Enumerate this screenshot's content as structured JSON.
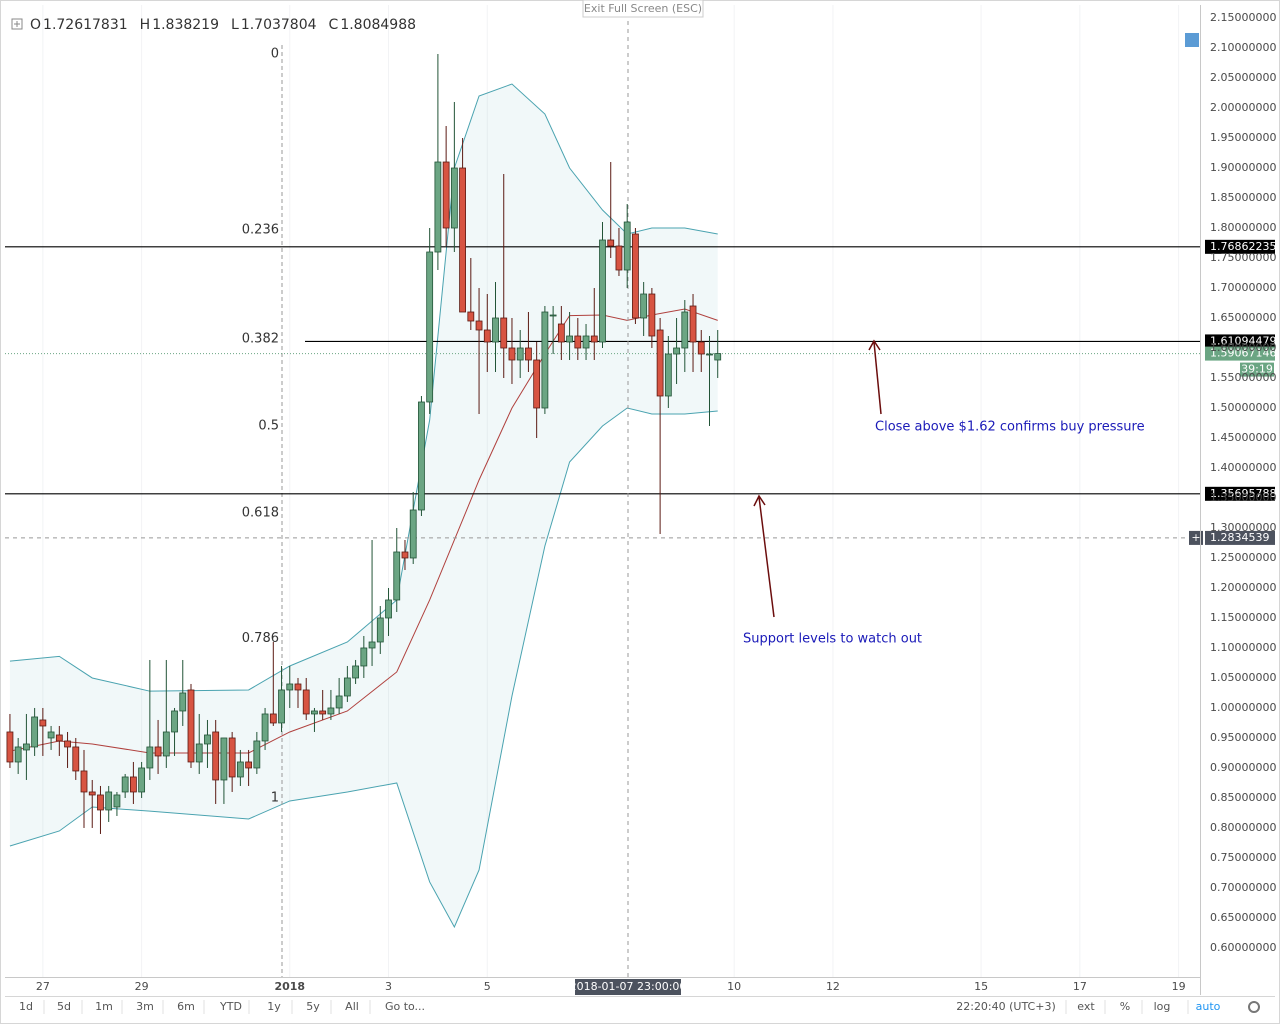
{
  "header": {
    "open_label": "O",
    "open": 1.72617831,
    "high_label": "H",
    "high": 1.838219,
    "low_label": "L",
    "low": 1.7037804,
    "close_label": "C",
    "close": 1.8084988
  },
  "exit_fullscreen": "Exit Full Screen (ESC)",
  "toolbar": {
    "ranges": [
      "1d",
      "5d",
      "1m",
      "3m",
      "6m",
      "YTD",
      "1y",
      "5y",
      "All"
    ],
    "goto": "Go to...",
    "clock": "22:20:40 (UTC+3)",
    "options": [
      "ext",
      "%",
      "log",
      "auto"
    ]
  },
  "chart_data": {
    "type": "candlestick",
    "up_color": "#6ba583",
    "down_color": "#d75442",
    "candles": {
      "open": [
        0.96,
        0.91,
        0.93,
        0.935,
        0.98,
        0.95,
        0.955,
        0.945,
        0.935,
        0.895,
        0.86,
        0.855,
        0.83,
        0.835,
        0.86,
        0.885,
        0.86,
        0.9,
        0.935,
        0.92,
        0.96,
        0.995,
        1.03,
        0.91,
        0.94,
        0.96,
        0.88,
        0.95,
        0.885,
        0.91,
        0.9,
        0.945,
        0.99,
        0.975,
        1.03,
        1.04,
        1.03,
        0.99,
        0.995,
        0.99,
        1.0,
        1.02,
        1.05,
        1.07,
        1.1,
        1.11,
        1.15,
        1.18,
        1.26,
        1.25,
        1.33,
        1.51,
        1.76,
        1.91,
        1.8,
        1.9,
        1.66,
        1.645,
        1.63,
        1.61,
        1.65,
        1.6,
        1.58,
        1.6,
        1.58,
        1.5,
        1.655,
        1.64,
        1.61,
        1.62,
        1.6,
        1.62,
        1.61,
        1.78,
        1.77,
        1.73,
        1.79,
        1.65,
        1.69,
        1.63,
        1.52,
        1.59,
        1.6,
        1.67,
        1.61,
        1.59,
        1.58
      ],
      "high": [
        0.99,
        0.95,
        0.99,
        1.0,
        1.0,
        0.97,
        0.97,
        0.96,
        0.95,
        0.93,
        0.88,
        0.87,
        0.87,
        0.86,
        0.89,
        0.91,
        0.91,
        1.08,
        0.98,
        1.08,
        1.0,
        1.08,
        1.04,
        0.99,
        0.98,
        0.98,
        0.95,
        0.96,
        0.93,
        0.93,
        0.96,
        1.0,
        1.11,
        1.07,
        1.07,
        1.05,
        1.05,
        1.0,
        1.03,
        1.03,
        1.05,
        1.07,
        1.08,
        1.12,
        1.28,
        1.17,
        1.2,
        1.3,
        1.28,
        1.36,
        1.52,
        1.8,
        2.09,
        1.97,
        2.01,
        1.95,
        1.75,
        1.7,
        1.69,
        1.71,
        1.89,
        1.65,
        1.63,
        1.66,
        1.61,
        1.67,
        1.67,
        1.67,
        1.66,
        1.65,
        1.64,
        1.7,
        1.81,
        1.91,
        1.8,
        1.84,
        1.8,
        1.71,
        1.7,
        1.65,
        1.62,
        1.65,
        1.68,
        1.69,
        1.63,
        1.62,
        1.63
      ],
      "low": [
        0.9,
        0.89,
        0.88,
        0.92,
        0.92,
        0.93,
        0.92,
        0.9,
        0.88,
        0.8,
        0.8,
        0.79,
        0.81,
        0.82,
        0.85,
        0.84,
        0.85,
        0.88,
        0.89,
        0.9,
        0.92,
        0.97,
        0.9,
        0.89,
        0.9,
        0.84,
        0.84,
        0.86,
        0.87,
        0.87,
        0.89,
        0.93,
        0.97,
        0.96,
        1.0,
        1.0,
        0.98,
        0.96,
        0.98,
        0.98,
        0.99,
        1.01,
        1.04,
        1.05,
        1.07,
        1.09,
        1.12,
        1.16,
        1.23,
        1.24,
        1.32,
        1.49,
        1.73,
        1.77,
        1.76,
        1.66,
        1.63,
        1.49,
        1.56,
        1.56,
        1.55,
        1.54,
        1.55,
        1.56,
        1.45,
        1.49,
        1.59,
        1.58,
        1.58,
        1.58,
        1.58,
        1.58,
        1.6,
        1.75,
        1.72,
        1.7,
        1.64,
        1.62,
        1.6,
        1.29,
        1.5,
        1.54,
        1.56,
        1.56,
        1.56,
        1.47,
        1.55
      ],
      "close": [
        0.91,
        0.935,
        0.94,
        0.985,
        0.97,
        0.96,
        0.945,
        0.935,
        0.895,
        0.86,
        0.855,
        0.83,
        0.86,
        0.855,
        0.885,
        0.86,
        0.9,
        0.935,
        0.92,
        0.96,
        0.995,
        1.025,
        0.91,
        0.94,
        0.955,
        0.88,
        0.95,
        0.885,
        0.91,
        0.9,
        0.945,
        0.99,
        0.975,
        1.03,
        1.04,
        1.03,
        0.99,
        0.995,
        0.99,
        1.0,
        1.02,
        1.05,
        1.07,
        1.1,
        1.11,
        1.15,
        1.18,
        1.26,
        1.25,
        1.33,
        1.51,
        1.76,
        1.91,
        1.8,
        1.9,
        1.66,
        1.645,
        1.63,
        1.61,
        1.65,
        1.6,
        1.58,
        1.6,
        1.58,
        1.5,
        1.66,
        1.655,
        1.61,
        1.62,
        1.6,
        1.62,
        1.61,
        1.78,
        1.77,
        1.73,
        1.81,
        1.65,
        1.69,
        1.62,
        1.52,
        1.59,
        1.6,
        1.66,
        1.61,
        1.59,
        1.59,
        1.59067146
      ]
    },
    "bands": {
      "color": "#4aa3b0",
      "middle_color": "#b0413e",
      "x": [
        0,
        6,
        10,
        17,
        29,
        34,
        41,
        47,
        51,
        54,
        57,
        61,
        65,
        68,
        72,
        75,
        78,
        82,
        86
      ],
      "upper": [
        1.078,
        1.086,
        1.05,
        1.028,
        1.03,
        1.07,
        1.11,
        1.18,
        1.48,
        1.9,
        2.02,
        2.04,
        1.99,
        1.9,
        1.83,
        1.79,
        1.8,
        1.8,
        1.79
      ],
      "middle": [
        0.928,
        0.945,
        0.94,
        0.925,
        0.925,
        0.96,
        0.995,
        1.06,
        1.18,
        1.28,
        1.38,
        1.5,
        1.59,
        1.654,
        1.655,
        1.646,
        1.655,
        1.665,
        1.646
      ],
      "lower": [
        0.77,
        0.795,
        0.835,
        0.828,
        0.815,
        0.845,
        0.86,
        0.875,
        0.71,
        0.635,
        0.73,
        1.02,
        1.27,
        1.41,
        1.47,
        1.5,
        1.49,
        1.49,
        1.495
      ]
    },
    "fib_levels": [
      {
        "label": "0",
        "price": 2.09
      },
      {
        "label": "0.236",
        "price": 1.797
      },
      {
        "label": "0.382",
        "price": 1.615
      },
      {
        "label": "0.5",
        "price": 1.47
      },
      {
        "label": "0.618",
        "price": 1.325
      },
      {
        "label": "0.786",
        "price": 1.116
      },
      {
        "label": "1",
        "price": 0.85
      }
    ],
    "levels": [
      1.76862235,
      1.61094479,
      1.35695788
    ],
    "last_price": 1.59067146,
    "countdown": "39:19",
    "crosshair": {
      "price": 1.2834539,
      "time": "2018-01-07 23:00:00"
    },
    "annotations": [
      "Close above $1.62 confirms buy pressure",
      "Support levels to watch out"
    ],
    "xlim": [
      -0.6,
      144.6
    ],
    "xticks": [
      {
        "value": 4,
        "label": "27"
      },
      {
        "value": 16,
        "label": "29"
      },
      {
        "value": 34,
        "label": "2018"
      },
      {
        "value": 46,
        "label": "3"
      },
      {
        "value": 58,
        "label": "5"
      },
      {
        "value": 88,
        "label": "10"
      },
      {
        "value": 100,
        "label": "12"
      },
      {
        "value": 118,
        "label": "15"
      },
      {
        "value": 130,
        "label": "17"
      },
      {
        "value": 142,
        "label": "19"
      }
    ],
    "ylim": [
      0.5516,
      2.1717
    ],
    "yticks": [
      {
        "value": 2.15,
        "label": "2.15000000"
      },
      {
        "value": 2.1,
        "label": "2.10000000"
      },
      {
        "value": 2.05,
        "label": "2.05000000"
      },
      {
        "value": 2.0,
        "label": "2.00000000"
      },
      {
        "value": 1.95,
        "label": "1.95000000"
      },
      {
        "value": 1.9,
        "label": "1.90000000"
      },
      {
        "value": 1.85,
        "label": "1.85000000"
      },
      {
        "value": 1.8,
        "label": "1.80000000"
      },
      {
        "value": 1.75,
        "label": "1.75000000"
      },
      {
        "value": 1.7,
        "label": "1.70000000"
      },
      {
        "value": 1.65,
        "label": "1.65000000"
      },
      {
        "value": 1.6,
        "label": "1.60000000"
      },
      {
        "value": 1.55,
        "label": "1.55000000"
      },
      {
        "value": 1.5,
        "label": "1.50000000"
      },
      {
        "value": 1.45,
        "label": "1.45000000"
      },
      {
        "value": 1.4,
        "label": "1.40000000"
      },
      {
        "value": 1.35,
        "label": "1.35000000"
      },
      {
        "value": 1.3,
        "label": "1.30000000"
      },
      {
        "value": 1.25,
        "label": "1.25000000"
      },
      {
        "value": 1.2,
        "label": "1.20000000"
      },
      {
        "value": 1.15,
        "label": "1.15000000"
      },
      {
        "value": 1.1,
        "label": "1.10000000"
      },
      {
        "value": 1.05,
        "label": "1.05000000"
      },
      {
        "value": 1.0,
        "label": "1.00000000"
      },
      {
        "value": 0.95,
        "label": "0.95000000"
      },
      {
        "value": 0.9,
        "label": "0.90000000"
      },
      {
        "value": 0.85,
        "label": "0.85000000"
      },
      {
        "value": 0.8,
        "label": "0.80000000"
      },
      {
        "value": 0.75,
        "label": "0.75000000"
      },
      {
        "value": 0.7,
        "label": "0.70000000"
      },
      {
        "value": 0.65,
        "label": "0.65000000"
      },
      {
        "value": 0.6,
        "label": "0.60000000"
      }
    ],
    "grid": true
  }
}
